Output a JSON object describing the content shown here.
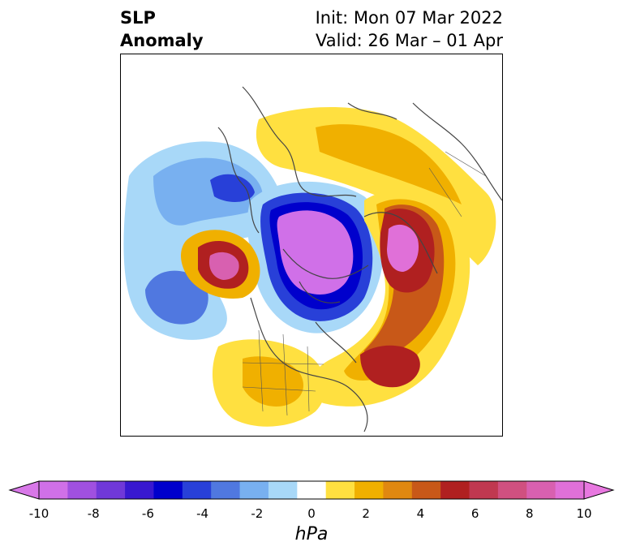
{
  "title": {
    "left_line1": "SLP",
    "left_line2": "Anomaly",
    "right_line1": "Init: Mon 07 Mar 2022",
    "right_line2": "Valid: 26 Mar – 01 Apr"
  },
  "colorbar": {
    "units": "hPa",
    "tick_labels": [
      "-10",
      "-8",
      "-6",
      "-4",
      "-2",
      "0",
      "2",
      "4",
      "6",
      "8",
      "10"
    ],
    "colors": [
      "#d070e8",
      "#a050e0",
      "#7038d8",
      "#3818d0",
      "#0000cc",
      "#2840d8",
      "#5078e0",
      "#78b0f0",
      "#a8d8f8",
      "#ffffff",
      "#ffe040",
      "#f0b000",
      "#e08810",
      "#c85818",
      "#b02020",
      "#c03850",
      "#d05080",
      "#d860b0",
      "#e070d8"
    ],
    "extend_low_color": "#d878e8",
    "extend_high_color": "#e878e0"
  }
}
